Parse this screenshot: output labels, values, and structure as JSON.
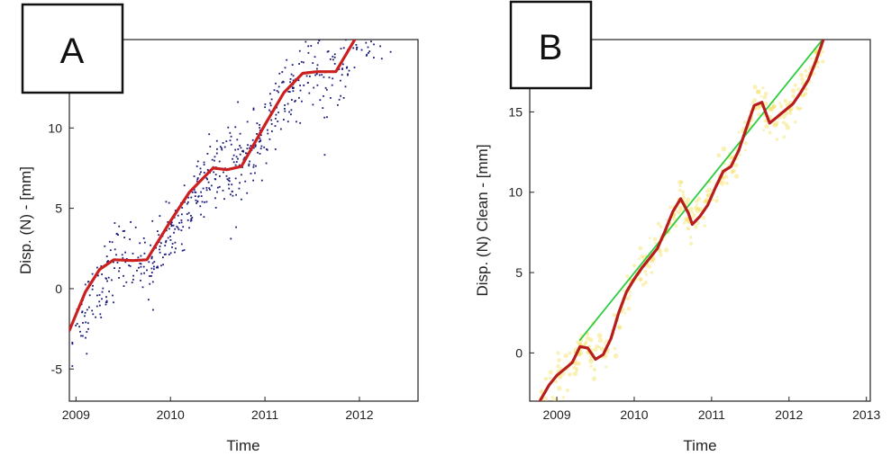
{
  "chart_data": [
    {
      "type": "scatter",
      "panel": "A",
      "xlabel": "Time",
      "ylabel": "Disp. (N) - [mm]",
      "xlim": [
        2008.93,
        2012.62
      ],
      "ylim": [
        -7.0,
        15.5
      ],
      "xticks": [
        2009,
        2010,
        2011,
        2012
      ],
      "yticks": [
        -5,
        0,
        5,
        10
      ],
      "xtick_labels": [
        "2009",
        "2010",
        "2011",
        "2012"
      ],
      "ytick_labels": [
        "-5",
        "0",
        "5",
        "10"
      ],
      "grid": false,
      "series": [
        {
          "kind": "points",
          "color": "#1a1a7a",
          "segments": [
            {
              "x0": 2008.95,
              "x1": 2009.4,
              "y0": -3.0,
              "y1": 1.8,
              "sd": 1.1,
              "n": 75
            },
            {
              "x0": 2009.4,
              "x1": 2009.8,
              "y0": 1.8,
              "y1": 1.8,
              "sd": 1.1,
              "n": 60
            },
            {
              "x0": 2009.8,
              "x1": 2010.45,
              "y0": 1.8,
              "y1": 7.5,
              "sd": 0.9,
              "n": 140
            },
            {
              "x0": 2010.45,
              "x1": 2010.75,
              "y0": 7.5,
              "y1": 7.5,
              "sd": 1.5,
              "n": 70
            },
            {
              "x0": 2010.75,
              "x1": 2011.4,
              "y0": 7.5,
              "y1": 13.5,
              "sd": 1.1,
              "n": 130
            },
            {
              "x0": 2011.4,
              "x1": 2011.78,
              "y0": 13.5,
              "y1": 13.5,
              "sd": 1.8,
              "n": 60
            },
            {
              "x0": 2011.78,
              "x1": 2012.4,
              "y0": 13.5,
              "y1": 18.0,
              "sd": 1.0,
              "n": 90
            }
          ]
        },
        {
          "kind": "line",
          "color": "#cc1f1f",
          "x": [
            2008.93,
            2009.1,
            2009.25,
            2009.4,
            2009.6,
            2009.75,
            2010.0,
            2010.2,
            2010.45,
            2010.6,
            2010.75,
            2011.0,
            2011.2,
            2011.4,
            2011.55,
            2011.75,
            2012.0,
            2012.15
          ],
          "y": [
            -2.6,
            -0.2,
            1.2,
            1.8,
            1.75,
            1.8,
            4.2,
            6.0,
            7.5,
            7.4,
            7.6,
            10.2,
            12.2,
            13.4,
            13.5,
            13.5,
            16.0,
            17.0
          ]
        }
      ]
    },
    {
      "type": "line",
      "panel": "B",
      "xlabel": "Time",
      "ylabel": "Disp. (N) Clean - [mm]",
      "xlim": [
        2008.65,
        2013.05
      ],
      "ylim": [
        -3.0,
        19.5
      ],
      "xticks": [
        2009,
        2010,
        2011,
        2012,
        2013
      ],
      "yticks": [
        0,
        5,
        10,
        15
      ],
      "xtick_labels": [
        "2009",
        "2010",
        "2011",
        "2012",
        "2013"
      ],
      "ytick_labels": [
        "0",
        "5",
        "10",
        "15"
      ],
      "grid": false,
      "series": [
        {
          "kind": "band",
          "color": "#f2e15a",
          "x": [
            2008.78,
            2009.0,
            2009.2,
            2009.35,
            2009.5,
            2009.7,
            2009.9,
            2010.1,
            2010.3,
            2010.5,
            2010.6,
            2010.75,
            2010.9,
            2011.1,
            2011.25,
            2011.4,
            2011.6,
            2011.75,
            2011.9,
            2012.1,
            2012.3,
            2012.45
          ],
          "y": [
            -3.0,
            -1.5,
            -0.8,
            0.5,
            -0.3,
            0.8,
            3.5,
            5.2,
            6.5,
            8.5,
            9.6,
            8.0,
            9.0,
            11.0,
            11.5,
            13.5,
            15.6,
            14.2,
            15.0,
            15.5,
            17.8,
            19.6
          ],
          "halfwidth": 0.9
        },
        {
          "kind": "line",
          "color": "#2ecc40",
          "x": [
            2009.3,
            2012.45
          ],
          "y": [
            0.8,
            19.6
          ]
        },
        {
          "kind": "line",
          "color": "#b81d1d",
          "x": [
            2008.78,
            2008.9,
            2009.0,
            2009.1,
            2009.2,
            2009.3,
            2009.4,
            2009.5,
            2009.6,
            2009.7,
            2009.8,
            2009.9,
            2010.0,
            2010.1,
            2010.2,
            2010.3,
            2010.4,
            2010.5,
            2010.6,
            2010.7,
            2010.75,
            2010.85,
            2010.95,
            2011.05,
            2011.15,
            2011.25,
            2011.35,
            2011.45,
            2011.55,
            2011.65,
            2011.75,
            2011.85,
            2011.95,
            2012.05,
            2012.15,
            2012.25,
            2012.35,
            2012.45
          ],
          "y": [
            -3.0,
            -2.0,
            -1.4,
            -1.0,
            -0.6,
            0.4,
            0.3,
            -0.4,
            -0.1,
            0.9,
            2.5,
            3.8,
            4.6,
            5.3,
            5.9,
            6.5,
            7.6,
            8.8,
            9.6,
            8.7,
            8.0,
            8.5,
            9.2,
            10.3,
            11.3,
            11.6,
            12.6,
            14.0,
            15.4,
            15.6,
            14.3,
            14.7,
            15.1,
            15.5,
            16.2,
            17.0,
            18.2,
            19.6
          ]
        }
      ]
    }
  ],
  "panels": {
    "A": {
      "letter": "A"
    },
    "B": {
      "letter": "B"
    }
  }
}
